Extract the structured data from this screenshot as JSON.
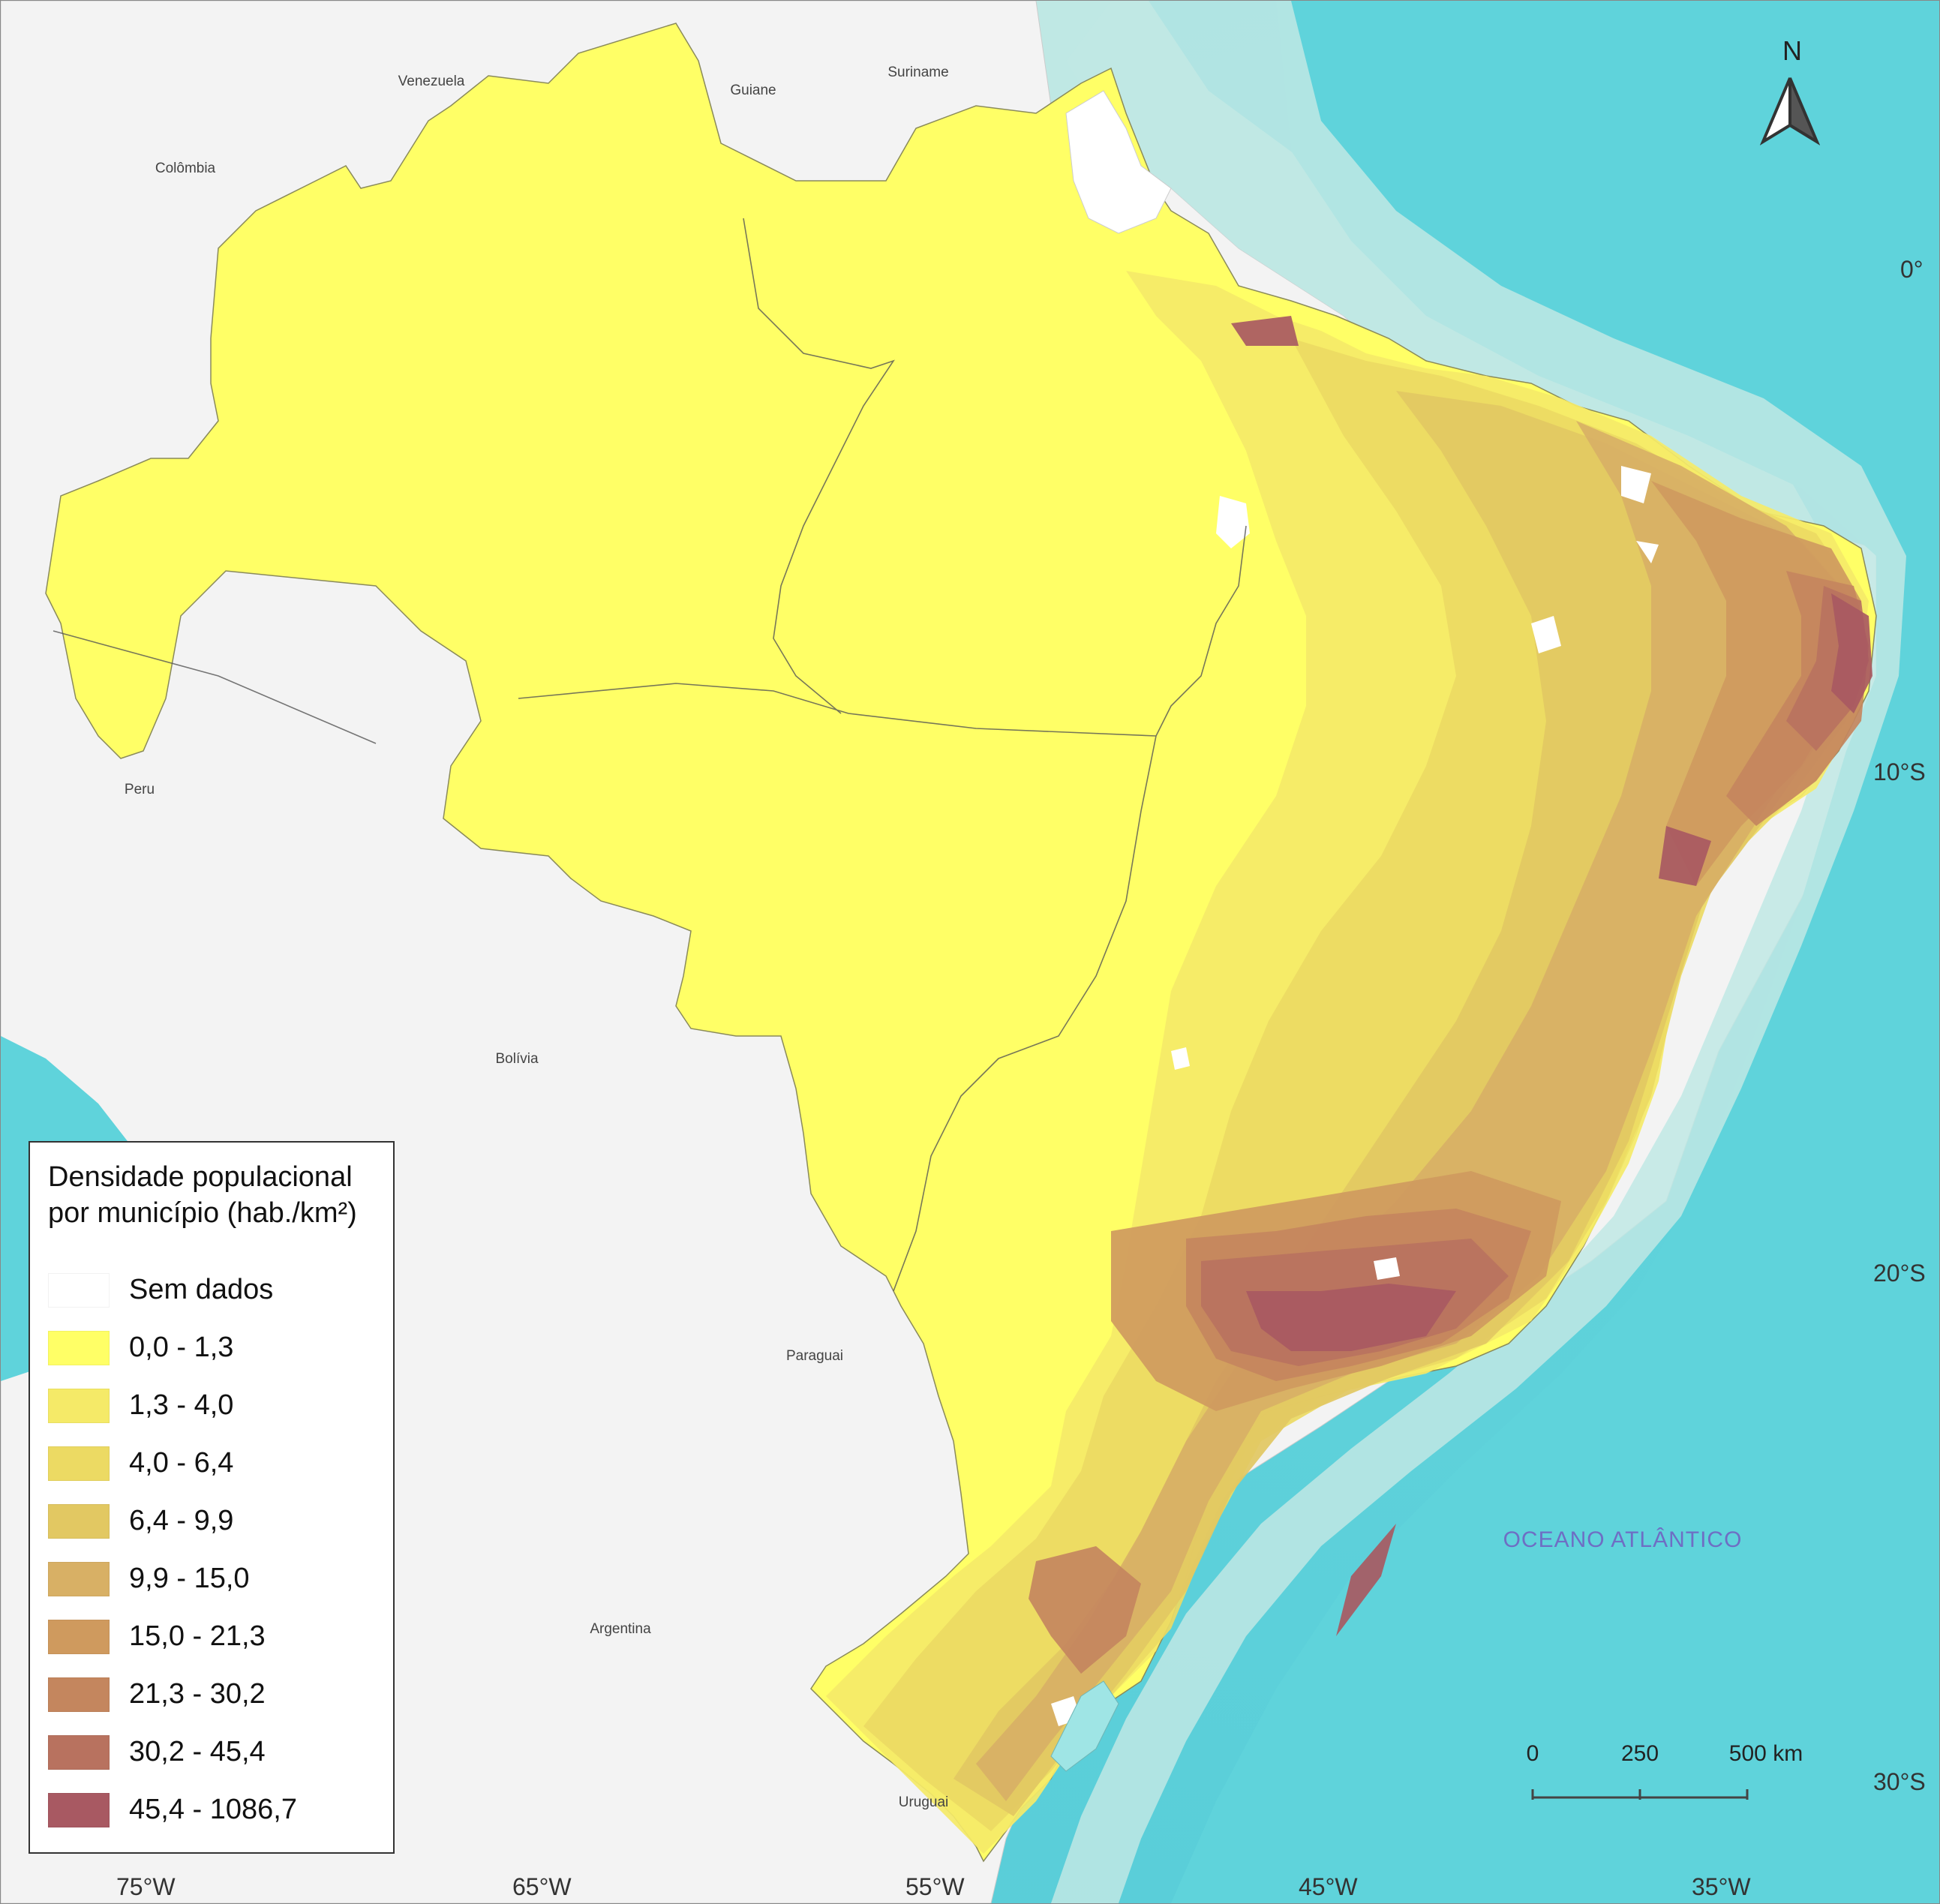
{
  "legend": {
    "title_line1": "Densidade populacional",
    "title_line2": "por município (hab./km²)",
    "items": [
      {
        "label": "Sem dados",
        "color": "#ffffff"
      },
      {
        "label": "0,0 - 1,3",
        "color": "#ffff66"
      },
      {
        "label": "1,3 - 4,0",
        "color": "#f5ea68"
      },
      {
        "label": "4,0 - 6,4",
        "color": "#ecda63"
      },
      {
        "label": "6,4 - 9,9",
        "color": "#e2c862"
      },
      {
        "label": "9,9 - 15,0",
        "color": "#d8b065"
      },
      {
        "label": "15,0 - 21,3",
        "color": "#cf9a5e"
      },
      {
        "label": "21,3 - 30,2",
        "color": "#c4865e"
      },
      {
        "label": "30,2 - 45,4",
        "color": "#b8725f"
      },
      {
        "label": "45,4 - 1086,7",
        "color": "#a85962"
      }
    ]
  },
  "countries": [
    {
      "label": "Venezuela"
    },
    {
      "label": "Guiane"
    },
    {
      "label": "Suriname"
    },
    {
      "label": "Colômbia"
    },
    {
      "label": "Peru"
    },
    {
      "label": "Bolívia"
    },
    {
      "label": "Paraguai"
    },
    {
      "label": "Argentina"
    },
    {
      "label": "Uruguai"
    }
  ],
  "ocean_label": "OCEANO ATLÂNTICO",
  "latitude_labels": [
    "0°",
    "10°S",
    "20°S",
    "30°S"
  ],
  "longitude_labels": [
    "75°W",
    "65°W",
    "55°W",
    "45°W",
    "35°W"
  ],
  "north_label": "N",
  "scale_labels": [
    "0",
    "250",
    "500 km"
  ],
  "colors": {
    "ocean_deep": "#5fd3db",
    "ocean_shelf": "#bfe8e4",
    "land_neighbors": "#f3f3f3",
    "lagoon": "#9fe5e5"
  }
}
